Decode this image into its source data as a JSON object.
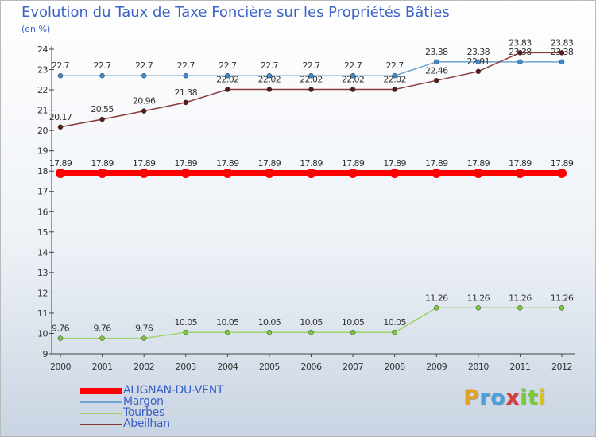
{
  "chart_data": {
    "type": "line",
    "title": "Evolution du Taux de Taxe Foncière sur les Propriétés Bâties",
    "ylabel": "(en %)",
    "xlabel": "",
    "categories": [
      "2000",
      "2001",
      "2002",
      "2003",
      "2004",
      "2005",
      "2006",
      "2007",
      "2008",
      "2009",
      "2010",
      "2011",
      "2012"
    ],
    "ylim": [
      9,
      24
    ],
    "yticks": [
      9,
      10,
      11,
      12,
      13,
      14,
      15,
      16,
      17,
      18,
      19,
      20,
      21,
      22,
      23,
      24
    ],
    "grid": false,
    "legend_position": "bottom-left",
    "series": [
      {
        "name": "ALIGNAN-DU-VENT",
        "color": "#ff0000",
        "emphasis": true,
        "values": [
          17.89,
          17.89,
          17.89,
          17.89,
          17.89,
          17.89,
          17.89,
          17.89,
          17.89,
          17.89,
          17.89,
          17.89,
          17.89
        ],
        "labels": [
          "17.89",
          "17.89",
          "17.89",
          "17.89",
          "17.89",
          "17.89",
          "17.89",
          "17.89",
          "17.89",
          "17.89",
          "17.89",
          "17.89",
          "17.89"
        ]
      },
      {
        "name": "Margon",
        "color": "#6ea3d0",
        "marker": "#3d8ad0",
        "values": [
          22.7,
          22.7,
          22.7,
          22.7,
          22.7,
          22.7,
          22.7,
          22.7,
          22.7,
          23.38,
          23.38,
          23.38,
          23.38
        ],
        "labels": [
          "22.7",
          "22.7",
          "22.7",
          "22.7",
          "22.7",
          "22.7",
          "22.7",
          "22.7",
          "22.7",
          "23.38",
          "23.38",
          "23.38",
          "23.38"
        ]
      },
      {
        "name": "Tourbes",
        "color": "#9ed46a",
        "marker": "#7bc83c",
        "values": [
          9.76,
          9.76,
          9.76,
          10.05,
          10.05,
          10.05,
          10.05,
          10.05,
          10.05,
          11.26,
          11.26,
          11.26,
          11.26
        ],
        "labels": [
          "9.76",
          "9.76",
          "9.76",
          "10.05",
          "10.05",
          "10.05",
          "10.05",
          "10.05",
          "10.05",
          "11.26",
          "11.26",
          "11.26",
          "11.26"
        ]
      },
      {
        "name": "Abeilhan",
        "color": "#8b3a3a",
        "marker": "#5a1a1a",
        "values": [
          20.17,
          20.55,
          20.96,
          21.38,
          22.02,
          22.02,
          22.02,
          22.02,
          22.02,
          22.46,
          22.91,
          23.83,
          23.83
        ],
        "labels": [
          "20.17",
          "20.55",
          "20.96",
          "21.38",
          "22.02",
          "22.02",
          "22.02",
          "22.02",
          "22.02",
          "22.46",
          "22.91",
          "23.83",
          "23.83"
        ]
      }
    ]
  },
  "logo": {
    "letters": [
      "P",
      "r",
      "o",
      "x",
      "i",
      "t",
      "i"
    ],
    "colors": [
      "#e8a020",
      "#4aa0d8",
      "#4aa0d8",
      "#d83a3a",
      "#7bc83c",
      "#7bc83c",
      "#d8c020"
    ]
  }
}
